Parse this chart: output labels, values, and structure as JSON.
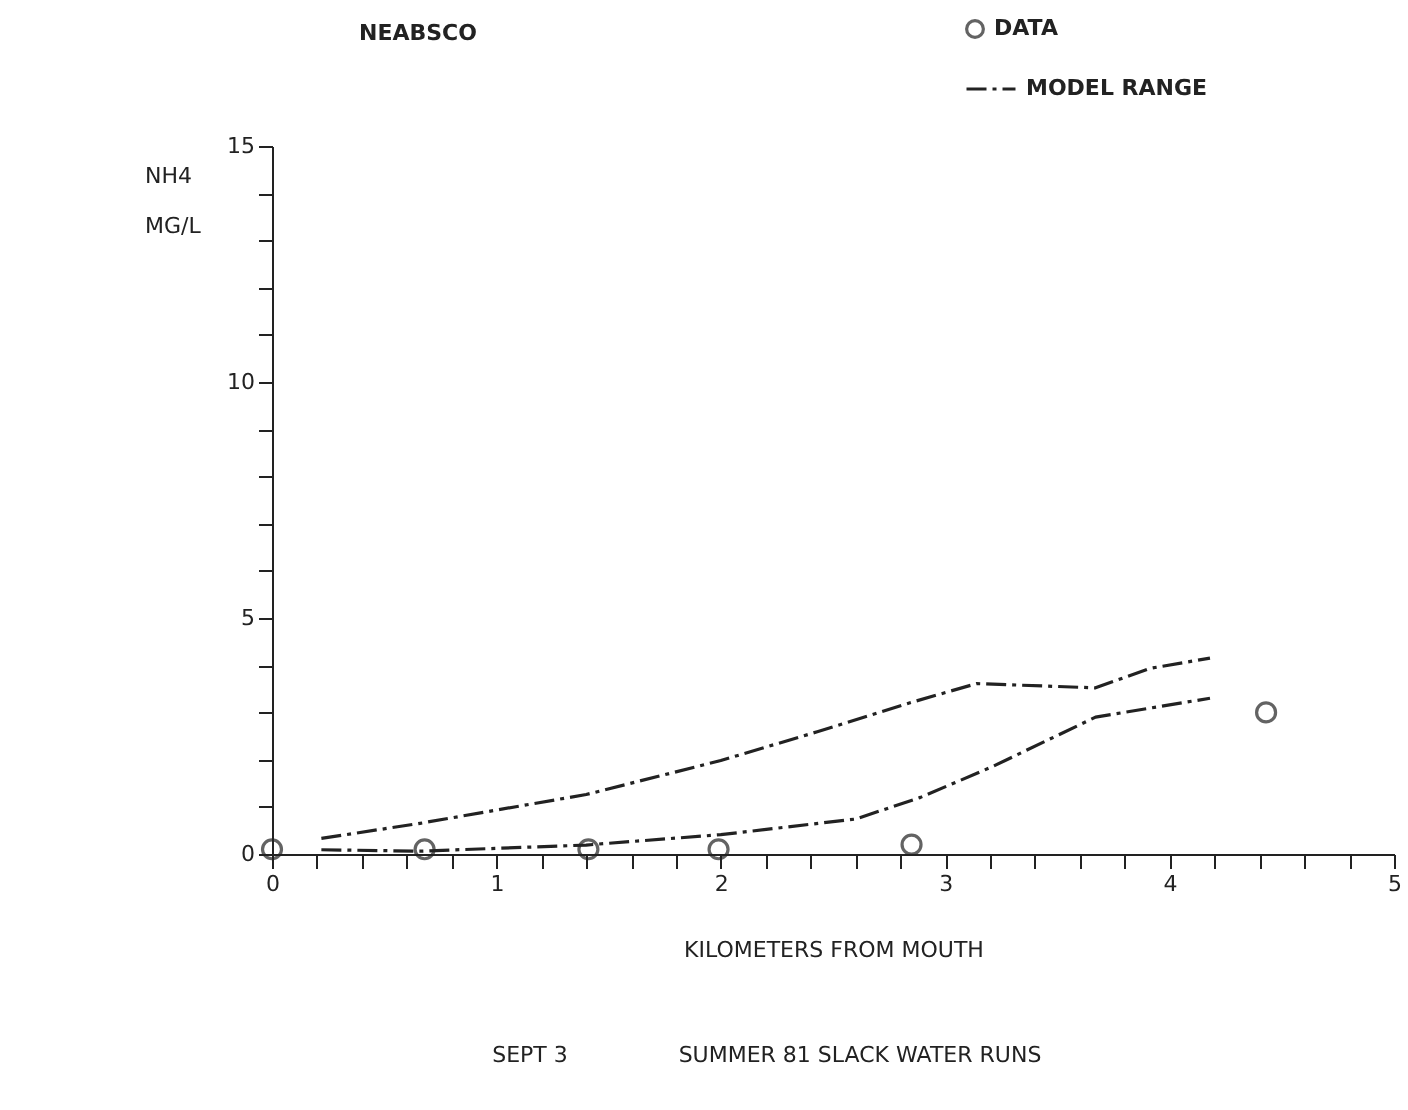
{
  "chart_data": {
    "type": "line",
    "title": "NEABSCO",
    "xlabel": "KILOMETERS FROM MOUTH",
    "ylabel": "NH4 MG/L",
    "annotations": [
      "SEPT 3",
      "SUMMER 81 SLACK WATER RUNS"
    ],
    "xlim": [
      0,
      5
    ],
    "ylim": [
      0,
      15
    ],
    "xticks": [
      0,
      {
        "value": 0.2,
        "label": null
      },
      {
        "value": 0.4,
        "label": null
      },
      {
        "value": 0.6,
        "label": null
      },
      {
        "value": 0.8,
        "label": null
      },
      1,
      {
        "value": 1.2,
        "label": null
      },
      {
        "value": 1.4,
        "label": null
      },
      {
        "value": 1.6,
        "label": null
      },
      {
        "value": 1.8,
        "label": null
      },
      2,
      {
        "value": 2.2,
        "label": null
      },
      {
        "value": 2.4,
        "label": null
      },
      {
        "value": 2.6,
        "label": null
      },
      {
        "value": 2.8,
        "label": null
      },
      3,
      {
        "value": 3.2,
        "label": null
      },
      {
        "value": 3.4,
        "label": null
      },
      {
        "value": 3.6,
        "label": null
      },
      {
        "value": 3.8,
        "label": null
      },
      4,
      {
        "value": 4.2,
        "label": null
      },
      {
        "value": 4.4,
        "label": null
      },
      {
        "value": 4.6,
        "label": null
      },
      {
        "value": 4.8,
        "label": null
      },
      5
    ],
    "yticks": [
      0,
      {
        "value": 1,
        "label": null
      },
      {
        "value": 2,
        "label": null
      },
      {
        "value": 3,
        "label": null
      },
      {
        "value": 4,
        "label": null
      },
      5,
      {
        "value": 6,
        "label": null
      },
      {
        "value": 7,
        "label": null
      },
      {
        "value": 8,
        "label": null
      },
      {
        "value": 9,
        "label": null
      },
      10,
      {
        "value": 11,
        "label": null
      },
      {
        "value": 12,
        "label": null
      },
      {
        "value": 13,
        "label": null
      },
      {
        "value": 14,
        "label": null
      },
      15
    ],
    "grid": false,
    "legend": "top right",
    "series": [
      {
        "name": "DATA",
        "type": "scatter",
        "marker": "circle",
        "color": "#222222",
        "x": [
          0,
          0.68,
          1.41,
          1.99,
          2.85,
          4.43
        ],
        "values": [
          0.1,
          0.1,
          0.1,
          0.1,
          0.2,
          3.0
        ]
      },
      {
        "name": "MODEL RANGE",
        "type": "line",
        "line_style": "dashed",
        "color": "#222222",
        "x": [
          0.22,
          0.66,
          1.4,
          2.0,
          2.43,
          2.84,
          3.14,
          3.67,
          3.91,
          4.18
        ],
        "values": [
          0.33,
          0.65,
          1.26,
          1.98,
          2.59,
          3.2,
          3.61,
          3.52,
          3.93,
          4.15
        ]
      },
      {
        "type": "line",
        "line_style": "dashed",
        "color": "#222222",
        "x": [
          0.22,
          0.66,
          1.4,
          2.0,
          2.6,
          2.89,
          3.21,
          3.67,
          4.18
        ],
        "values": [
          0.09,
          0.06,
          0.19,
          0.41,
          0.74,
          1.2,
          1.85,
          2.9,
          3.3
        ]
      }
    ]
  }
}
